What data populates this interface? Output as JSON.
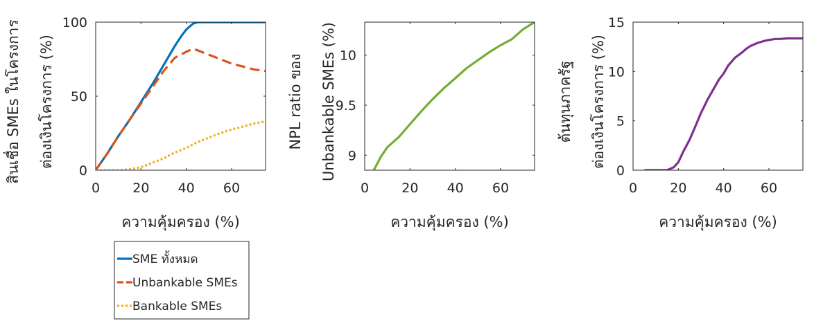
{
  "chart_data": [
    {
      "type": "line",
      "xlabel": "ความคุ้มครอง (%)",
      "ylabel_lines": [
        "สินเชื่อ SMEs ในโครงการ",
        "ต่องเงินโครงการ (%)"
      ],
      "xlim": [
        0,
        75
      ],
      "ylim": [
        0,
        100
      ],
      "xticks": [
        0,
        20,
        40,
        60
      ],
      "yticks": [
        0,
        50,
        100
      ],
      "grid": false,
      "series": [
        {
          "name": "SME ทั้งหมด",
          "color": "#0072BD",
          "style": "solid",
          "x": [
            0,
            5,
            10,
            15,
            20,
            25,
            30,
            35,
            38,
            40,
            43,
            45,
            50,
            55,
            60,
            65,
            70,
            75
          ],
          "y": [
            0,
            11,
            23,
            34,
            46,
            58,
            71,
            84,
            91,
            95,
            99,
            100,
            100,
            100,
            100,
            100,
            100,
            100
          ]
        },
        {
          "name": "Unbankable SMEs",
          "color": "#D95319",
          "style": "dashed",
          "x": [
            0,
            5,
            10,
            15,
            20,
            25,
            30,
            35,
            40,
            43,
            45,
            50,
            55,
            60,
            65,
            70,
            75
          ],
          "y": [
            0,
            11,
            23,
            34,
            45,
            56,
            67,
            76,
            80,
            82,
            81,
            78,
            75,
            72,
            70,
            68,
            67
          ]
        },
        {
          "name": "Bankable SMEs",
          "color": "#EDB120",
          "style": "dotted",
          "x": [
            0,
            5,
            10,
            15,
            20,
            25,
            30,
            35,
            40,
            45,
            50,
            55,
            60,
            65,
            70,
            75
          ],
          "y": [
            0,
            0,
            0,
            0.5,
            2,
            5,
            8,
            12,
            15,
            19,
            22,
            25,
            27.5,
            29.5,
            31.5,
            33
          ]
        }
      ],
      "legend": {
        "position": "below",
        "entries": [
          "SME ทั้งหมด",
          "Unbankable SMEs",
          "Bankable SMEs"
        ]
      }
    },
    {
      "type": "line",
      "xlabel": "ความคุ้มครอง  (%)",
      "ylabel_lines": [
        "NPL ratio ของ",
        "Unbankable SMEs (%)"
      ],
      "xlim": [
        0,
        75
      ],
      "ylim": [
        8.85,
        10.33
      ],
      "xticks": [
        0,
        20,
        40,
        60
      ],
      "yticks": [
        9,
        9.5,
        10
      ],
      "grid": false,
      "series": [
        {
          "color": "#77AC30",
          "style": "solid",
          "x": [
            4,
            7,
            10,
            15,
            20,
            25,
            30,
            35,
            40,
            45,
            50,
            55,
            60,
            65,
            70,
            75
          ],
          "y": [
            8.85,
            8.98,
            9.08,
            9.18,
            9.31,
            9.44,
            9.56,
            9.67,
            9.77,
            9.87,
            9.95,
            10.03,
            10.1,
            10.16,
            10.26,
            10.33
          ]
        }
      ]
    },
    {
      "type": "line",
      "xlabel": "ความคุ้มครอง  (%)",
      "ylabel_lines": [
        "ต้นทุนภาครัฐ",
        "ต่องเงินโครงการ (%)"
      ],
      "xlim": [
        0,
        75
      ],
      "ylim": [
        0,
        15
      ],
      "xticks": [
        0,
        20,
        40,
        60
      ],
      "yticks": [
        0,
        5,
        10,
        15
      ],
      "grid": false,
      "series": [
        {
          "color": "#7E2F8E",
          "style": "solid",
          "x": [
            5,
            10,
            15,
            18,
            20,
            22,
            25,
            28,
            30,
            33,
            35,
            38,
            40,
            42,
            45,
            48,
            50,
            52,
            55,
            58,
            60,
            63,
            65,
            68,
            70,
            75
          ],
          "y": [
            0,
            0,
            0,
            0.3,
            0.8,
            1.8,
            3.1,
            4.7,
            5.8,
            7.2,
            8.0,
            9.2,
            9.8,
            10.6,
            11.4,
            11.9,
            12.3,
            12.6,
            12.9,
            13.1,
            13.2,
            13.3,
            13.3,
            13.35,
            13.35,
            13.35
          ]
        }
      ]
    }
  ]
}
